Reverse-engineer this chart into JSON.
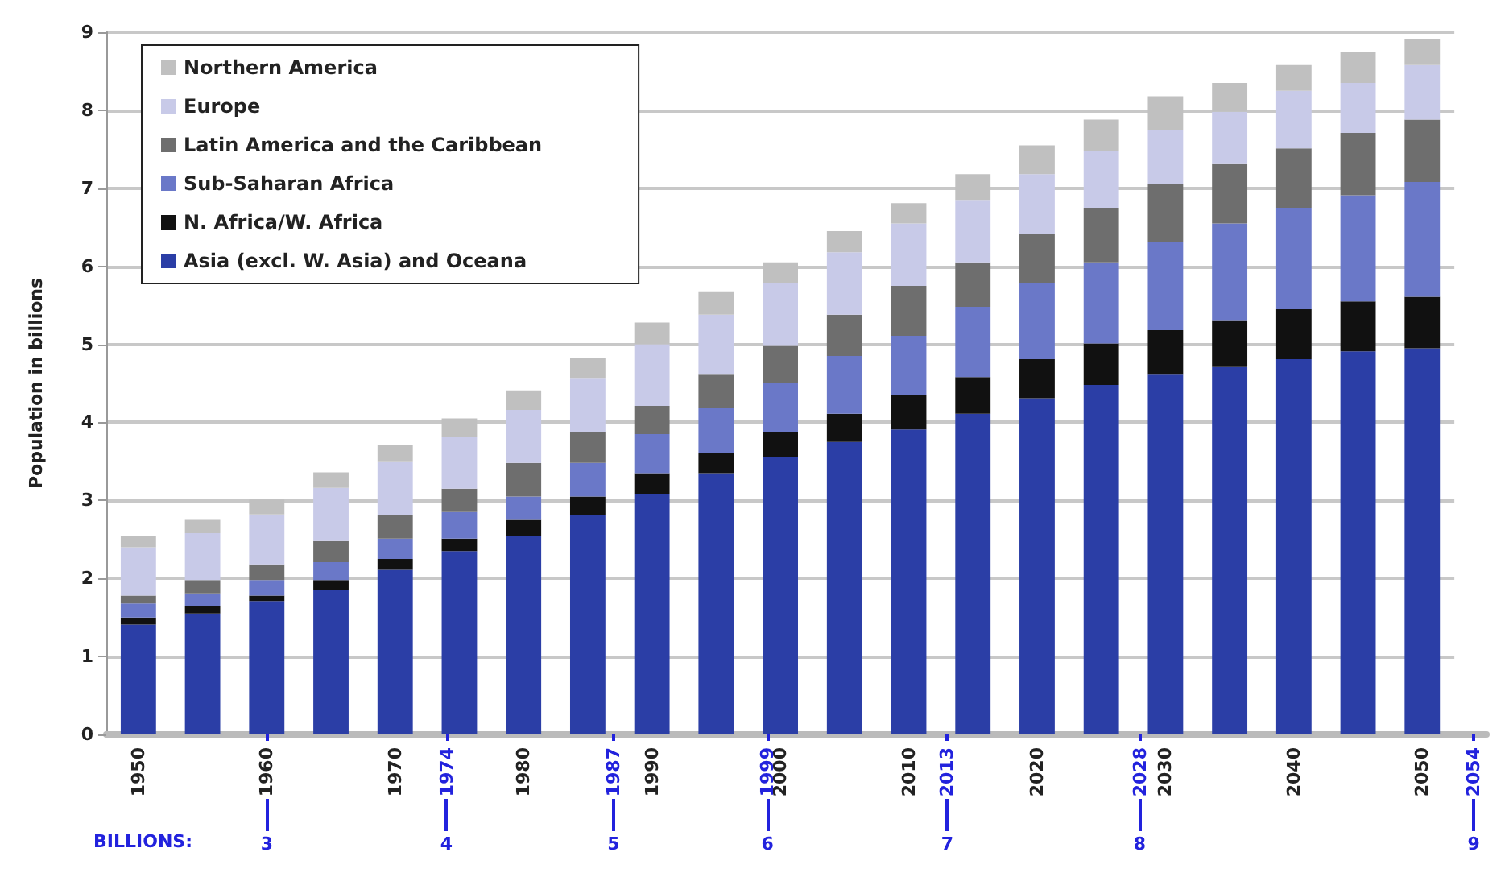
{
  "chart_data": {
    "type": "bar",
    "stacked": true,
    "ylabel": "Population in billions",
    "categories": [
      "1950",
      null,
      "1960",
      null,
      "1970",
      null,
      "1980",
      null,
      "1990",
      null,
      "2000",
      null,
      "2010",
      null,
      "2020",
      null,
      "2030",
      null,
      "2040",
      null,
      "2050"
    ],
    "series": [
      {
        "name": "Asia (excl. W. Asia) and Oceana",
        "color": "#2b3ea6",
        "values": [
          1.41,
          1.55,
          1.71,
          1.85,
          2.11,
          2.35,
          2.55,
          2.81,
          3.08,
          3.35,
          3.55,
          3.75,
          3.91,
          4.11,
          4.31,
          4.48,
          4.61,
          4.71,
          4.81,
          4.91,
          4.95
        ]
      },
      {
        "name": "N. Africa/W. Africa",
        "color": "#111111",
        "values": [
          0.09,
          0.1,
          0.07,
          0.13,
          0.14,
          0.16,
          0.2,
          0.24,
          0.27,
          0.26,
          0.33,
          0.36,
          0.44,
          0.47,
          0.5,
          0.53,
          0.57,
          0.6,
          0.64,
          0.64,
          0.66
        ]
      },
      {
        "name": "Sub-Saharan Africa",
        "color": "#6a78c8",
        "values": [
          0.18,
          0.16,
          0.2,
          0.23,
          0.26,
          0.34,
          0.3,
          0.43,
          0.5,
          0.57,
          0.63,
          0.74,
          0.76,
          0.9,
          0.97,
          1.04,
          1.13,
          1.24,
          1.3,
          1.36,
          1.47
        ]
      },
      {
        "name": "Latin America and the Caribbean",
        "color": "#6e6e6e",
        "values": [
          0.1,
          0.17,
          0.2,
          0.27,
          0.3,
          0.3,
          0.43,
          0.4,
          0.36,
          0.43,
          0.47,
          0.53,
          0.64,
          0.57,
          0.63,
          0.7,
          0.74,
          0.76,
          0.76,
          0.8,
          0.8
        ]
      },
      {
        "name": "Europe",
        "color": "#c8cae8",
        "values": [
          0.62,
          0.6,
          0.64,
          0.68,
          0.68,
          0.66,
          0.68,
          0.69,
          0.79,
          0.77,
          0.8,
          0.8,
          0.8,
          0.8,
          0.77,
          0.73,
          0.7,
          0.67,
          0.74,
          0.64,
          0.7
        ]
      },
      {
        "name": "Northern America",
        "color": "#c0c0c0",
        "values": [
          0.15,
          0.17,
          0.19,
          0.2,
          0.22,
          0.24,
          0.25,
          0.26,
          0.28,
          0.3,
          0.27,
          0.27,
          0.26,
          0.33,
          0.37,
          0.4,
          0.43,
          0.37,
          0.33,
          0.4,
          0.33
        ]
      }
    ],
    "ylim": [
      0,
      9
    ],
    "yticks": [
      0,
      1,
      2,
      3,
      4,
      5,
      6,
      7,
      8,
      9
    ],
    "grid": "y",
    "legend": "top left",
    "x2lim": [
      1947.5,
      2055
    ],
    "x2ticks": [
      {
        "value": 1960,
        "label": null
      },
      1974,
      1987,
      1999,
      2013,
      2028,
      2054
    ],
    "annotations": [
      "BILLIONS:",
      "3",
      "4",
      "5",
      "6",
      "7",
      "8",
      "9"
    ]
  }
}
